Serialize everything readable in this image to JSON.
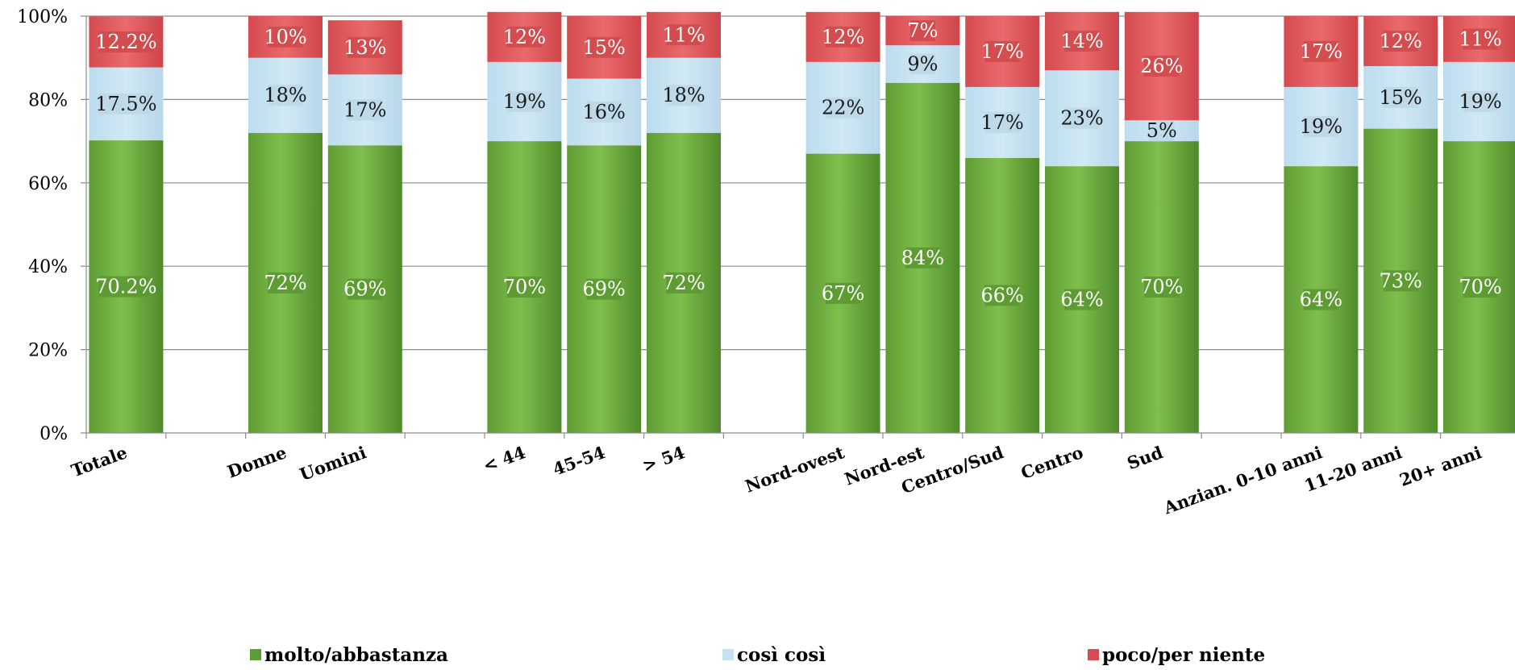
{
  "chart_data": {
    "type": "bar",
    "stacked": true,
    "categories": [
      "Totale",
      "",
      "Donne",
      "Uomini",
      "",
      "< 44",
      "45-54",
      "> 54",
      "",
      "Nord-ovest",
      "Nord-est",
      "Centro/Sud",
      "Centro",
      "Sud",
      "",
      "Anzian. 0-10 anni",
      "11-20 anni",
      "20+ anni"
    ],
    "series": [
      {
        "name": "molto/abbastanza",
        "color": "#6aa83e",
        "values": [
          70.2,
          null,
          72,
          69,
          null,
          70,
          69,
          72,
          null,
          67,
          84,
          66,
          64,
          70,
          null,
          64,
          73,
          70
        ],
        "labels": [
          "70.2%",
          "",
          "72%",
          "69%",
          "",
          "70%",
          "69%",
          "72%",
          "",
          "67%",
          "84%",
          "66%",
          "64%",
          "70%",
          "",
          "64%",
          "73%",
          "70%"
        ]
      },
      {
        "name": "così così",
        "color": "#c6e2f1",
        "values": [
          17.5,
          null,
          18,
          17,
          null,
          19,
          16,
          18,
          null,
          22,
          9,
          17,
          23,
          5,
          null,
          19,
          15,
          19
        ],
        "labels": [
          "17.5%",
          "",
          "18%",
          "17%",
          "",
          "19%",
          "16%",
          "18%",
          "",
          "22%",
          "9%",
          "17%",
          "23%",
          "5%",
          "",
          "19%",
          "15%",
          "19%"
        ]
      },
      {
        "name": "poco/per niente",
        "color": "#e0595c",
        "values": [
          12.2,
          null,
          10,
          13,
          null,
          12,
          15,
          11,
          null,
          12,
          7,
          17,
          14,
          26,
          null,
          17,
          12,
          11
        ],
        "labels": [
          "12.2%",
          "",
          "10%",
          "13%",
          "",
          "12%",
          "15%",
          "11%",
          "",
          "12%",
          "7%",
          "17%",
          "14%",
          "26%",
          "",
          "17%",
          "12%",
          "11%"
        ]
      }
    ],
    "ylim": [
      0,
      100
    ],
    "yticks": [
      "0%",
      "20%",
      "40%",
      "60%",
      "80%",
      "100%"
    ],
    "grid": true,
    "legend_position": "bottom",
    "title": "",
    "xlabel": "",
    "ylabel": ""
  }
}
